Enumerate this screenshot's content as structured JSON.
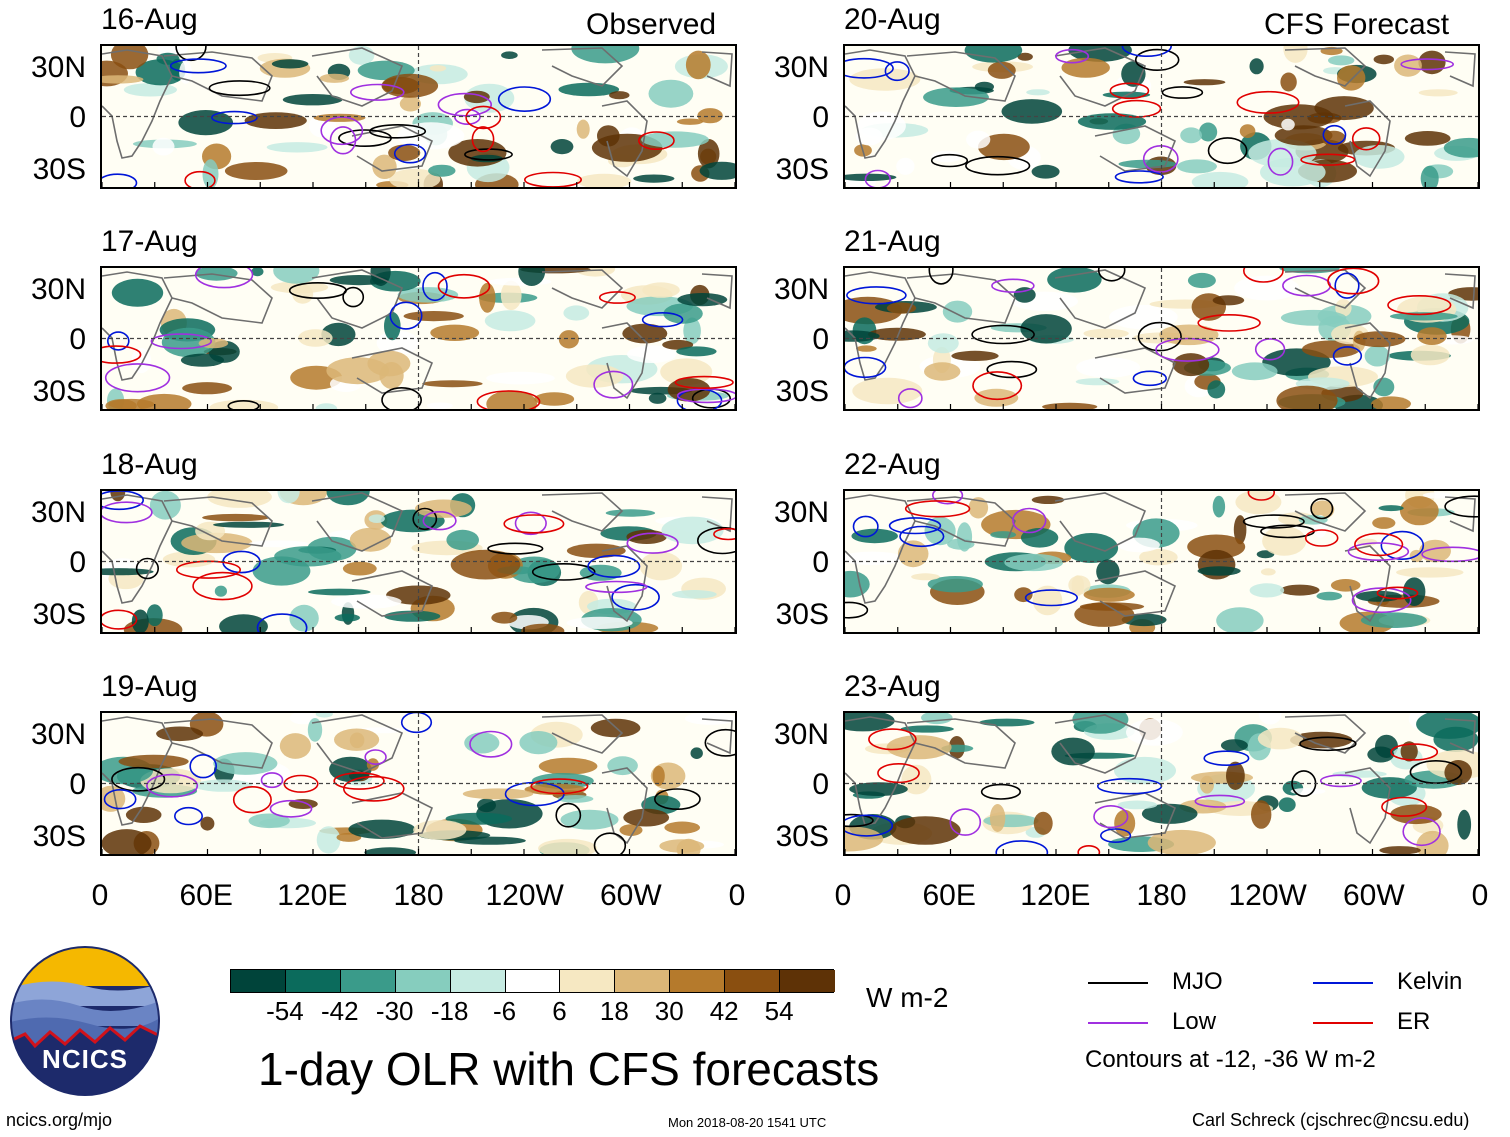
{
  "corner_labels": {
    "left": "Observed",
    "right": "CFS Forecast"
  },
  "chart_data": {
    "type": "heatmap",
    "title": "1-day OLR with CFS forecasts",
    "variable": "OLR anomaly",
    "units": "W m-2",
    "contour_note": "Contours at -12, -36 W m-2",
    "columns": [
      "Observed",
      "CFS Forecast"
    ],
    "panels": [
      {
        "date": "16-Aug",
        "kind": "observed"
      },
      {
        "date": "17-Aug",
        "kind": "observed"
      },
      {
        "date": "18-Aug",
        "kind": "observed"
      },
      {
        "date": "19-Aug",
        "kind": "observed"
      },
      {
        "date": "20-Aug",
        "kind": "forecast"
      },
      {
        "date": "21-Aug",
        "kind": "forecast"
      },
      {
        "date": "22-Aug",
        "kind": "forecast"
      },
      {
        "date": "23-Aug",
        "kind": "forecast"
      }
    ],
    "lat_ticks": [
      "30N",
      "0",
      "30S"
    ],
    "lon_ticks": [
      "0",
      "60E",
      "120E",
      "180",
      "120W",
      "60W",
      "0"
    ],
    "colorbar": {
      "labels": [
        "-54",
        "-42",
        "-30",
        "-18",
        "-6",
        "6",
        "18",
        "30",
        "42",
        "54"
      ],
      "colors": [
        "#00443a",
        "#0b6b5c",
        "#3a9b8a",
        "#86cdbe",
        "#c6ebe2",
        "#ffffff",
        "#f6e8c2",
        "#dcb778",
        "#b57a2c",
        "#8a4f10",
        "#5e3206"
      ]
    },
    "legend": [
      {
        "name": "MJO",
        "color": "#000000"
      },
      {
        "name": "Kelvin",
        "color": "#0016d8"
      },
      {
        "name": "Low",
        "color": "#a030e0"
      },
      {
        "name": "ER",
        "color": "#e00000"
      }
    ]
  },
  "footer": {
    "logo_text": "NCICS",
    "url": "ncics.org/mjo",
    "timestamp": "Mon 2018-08-20 1541 UTC",
    "credit": "Carl Schreck (cjschrec@ncsu.edu)"
  }
}
